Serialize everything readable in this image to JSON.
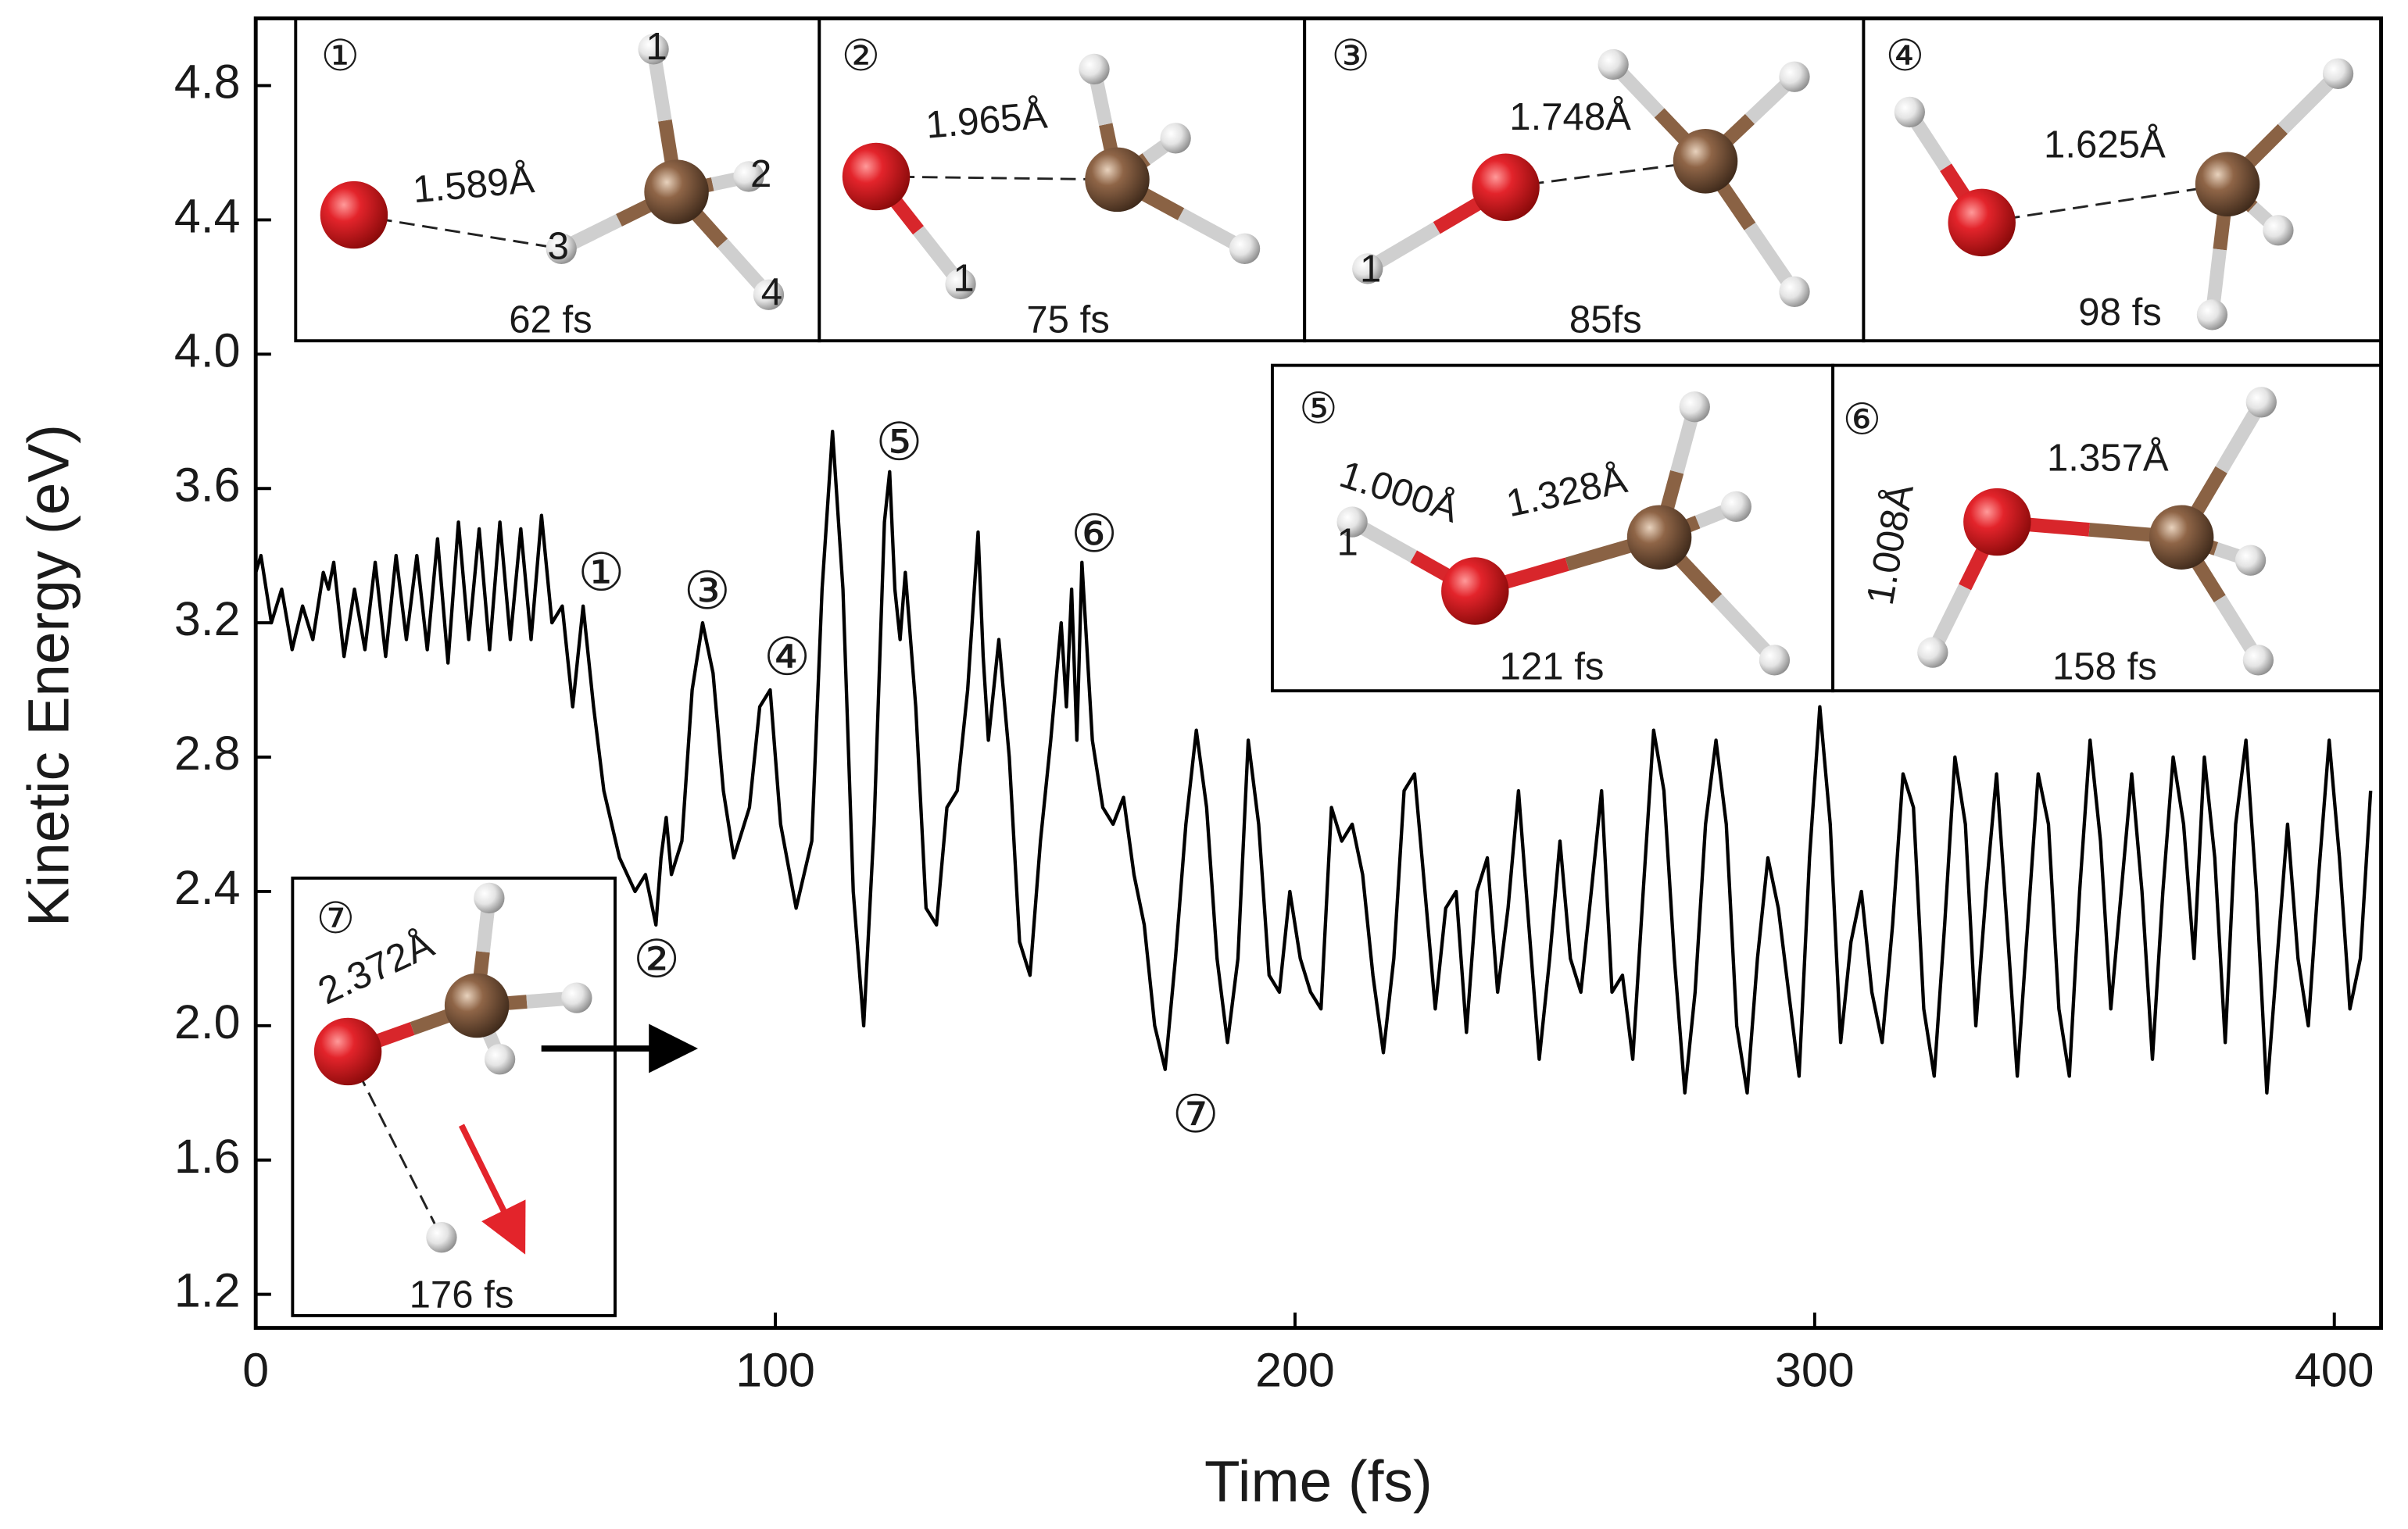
{
  "chart_data": {
    "type": "line",
    "x_label": "Time (fs)",
    "y_label": "Kinetic Energy (eV)",
    "color": "#000000",
    "xlim": [
      0,
      409
    ],
    "xticks": [
      0,
      100,
      200,
      300,
      400
    ],
    "ylim": [
      1.1,
      5.0
    ],
    "yticks": [
      1.2,
      1.6,
      {
        "value": 2,
        "label": "2.0"
      },
      2.4,
      2.8,
      3.2,
      3.6,
      {
        "value": 4,
        "label": "4.0"
      },
      4.4,
      4.8
    ],
    "x": [
      0,
      1,
      3,
      5,
      7,
      9,
      11,
      13,
      14,
      15,
      17,
      19,
      21,
      23,
      25,
      27,
      29,
      31,
      33,
      35,
      37,
      39,
      41,
      43,
      45,
      47,
      49,
      51,
      53,
      55,
      57,
      59,
      61,
      63,
      65,
      67,
      70,
      73,
      75,
      77,
      78,
      79,
      80,
      82,
      84,
      86,
      88,
      90,
      92,
      95,
      97,
      99,
      101,
      104,
      107,
      109,
      111,
      113,
      115,
      117,
      119,
      121,
      122,
      123,
      124,
      125,
      127,
      129,
      131,
      133,
      135,
      137,
      139,
      140,
      141,
      143,
      145,
      147,
      149,
      151,
      153,
      155,
      156,
      157,
      158,
      159,
      161,
      163,
      165,
      167,
      169,
      171,
      173,
      175,
      177,
      179,
      181,
      183,
      185,
      187,
      189,
      191,
      193,
      195,
      197,
      199,
      201,
      203,
      205,
      207,
      209,
      211,
      213,
      215,
      217,
      219,
      221,
      223,
      225,
      227,
      229,
      231,
      233,
      235,
      237,
      239,
      241,
      243,
      245,
      247,
      249,
      251,
      253,
      255,
      257,
      259,
      261,
      263,
      265,
      267,
      269,
      271,
      273,
      275,
      277,
      279,
      281,
      283,
      285,
      287,
      289,
      291,
      293,
      295,
      297,
      299,
      301,
      303,
      305,
      307,
      309,
      311,
      313,
      315,
      317,
      319,
      321,
      323,
      325,
      327,
      329,
      331,
      333,
      335,
      337,
      339,
      341,
      343,
      345,
      347,
      349,
      351,
      353,
      355,
      357,
      359,
      361,
      363,
      365,
      367,
      369,
      371,
      373,
      375,
      377,
      379,
      381,
      383,
      385,
      387,
      389,
      391,
      393,
      395,
      397,
      399,
      401,
      403,
      405,
      407
    ],
    "values": [
      3.35,
      3.4,
      3.2,
      3.3,
      3.12,
      3.25,
      3.15,
      3.35,
      3.3,
      3.38,
      3.1,
      3.3,
      3.12,
      3.38,
      3.1,
      3.4,
      3.15,
      3.4,
      3.12,
      3.45,
      3.08,
      3.5,
      3.15,
      3.48,
      3.12,
      3.5,
      3.15,
      3.48,
      3.15,
      3.52,
      3.2,
      3.25,
      2.95,
      3.25,
      2.95,
      2.7,
      2.5,
      2.4,
      2.45,
      2.3,
      2.5,
      2.62,
      2.45,
      2.55,
      3.0,
      3.2,
      3.05,
      2.7,
      2.5,
      2.65,
      2.95,
      3.0,
      2.6,
      2.35,
      2.55,
      3.3,
      3.77,
      3.3,
      2.4,
      2.0,
      2.6,
      3.5,
      3.65,
      3.3,
      3.15,
      3.35,
      2.95,
      2.35,
      2.3,
      2.65,
      2.7,
      3.0,
      3.47,
      3.1,
      2.85,
      3.15,
      2.8,
      2.25,
      2.15,
      2.55,
      2.85,
      3.2,
      2.95,
      3.3,
      2.85,
      3.38,
      2.85,
      2.65,
      2.6,
      2.68,
      2.45,
      2.3,
      2.0,
      1.87,
      2.2,
      2.6,
      2.88,
      2.65,
      2.2,
      1.95,
      2.2,
      2.85,
      2.6,
      2.15,
      2.1,
      2.4,
      2.2,
      2.1,
      2.05,
      2.65,
      2.55,
      2.6,
      2.45,
      2.15,
      1.92,
      2.2,
      2.7,
      2.75,
      2.4,
      2.05,
      2.35,
      2.4,
      1.98,
      2.4,
      2.5,
      2.1,
      2.35,
      2.7,
      2.3,
      1.9,
      2.2,
      2.55,
      2.2,
      2.1,
      2.4,
      2.7,
      2.1,
      2.15,
      1.9,
      2.4,
      2.88,
      2.7,
      2.2,
      1.8,
      2.1,
      2.6,
      2.85,
      2.6,
      2.0,
      1.8,
      2.2,
      2.5,
      2.35,
      2.1,
      1.85,
      2.5,
      2.95,
      2.6,
      1.95,
      2.25,
      2.4,
      2.1,
      1.95,
      2.3,
      2.75,
      2.65,
      2.05,
      1.85,
      2.3,
      2.8,
      2.6,
      2.0,
      2.4,
      2.75,
      2.3,
      1.85,
      2.3,
      2.75,
      2.6,
      2.05,
      1.85,
      2.4,
      2.85,
      2.55,
      2.05,
      2.4,
      2.75,
      2.4,
      1.9,
      2.4,
      2.8,
      2.6,
      2.2,
      2.8,
      2.5,
      1.95,
      2.6,
      2.85,
      2.4,
      1.8,
      2.2,
      2.6,
      2.2,
      2.0,
      2.45,
      2.85,
      2.5,
      2.05,
      2.2,
      2.7
    ],
    "markers": [
      "①",
      "②",
      "③",
      "④",
      "⑤",
      "⑥",
      "⑦"
    ],
    "insets": [
      {
        "label": "①",
        "distances": [
          "1.589Å"
        ],
        "time": "62 fs",
        "atom_labels": [
          "1",
          "2",
          "3",
          "4"
        ]
      },
      {
        "label": "②",
        "distances": [
          "1.965Å"
        ],
        "time": "75 fs",
        "atom_labels": [
          "1"
        ]
      },
      {
        "label": "③",
        "distances": [
          "1.748Å"
        ],
        "time": "85fs",
        "atom_labels": [
          "1"
        ]
      },
      {
        "label": "④",
        "distances": [
          "1.625Å"
        ],
        "time": "98 fs",
        "atom_labels": []
      },
      {
        "label": "⑤",
        "distances": [
          "1.000Å",
          "1.328Å"
        ],
        "time": "121 fs",
        "atom_labels": [
          "1"
        ]
      },
      {
        "label": "⑥",
        "distances": [
          "1.008Å",
          "1.357Å"
        ],
        "time": "158 fs",
        "atom_labels": []
      },
      {
        "label": "⑦",
        "distances": [
          "2.372Å"
        ],
        "time": "176 fs",
        "atom_labels": []
      }
    ]
  }
}
